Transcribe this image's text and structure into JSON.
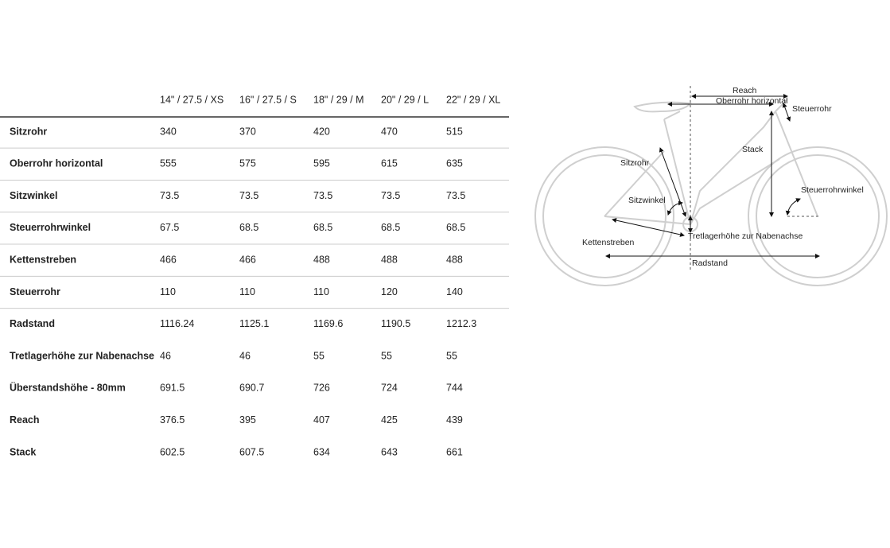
{
  "table": {
    "header": [
      "14\" / 27.5 / XS",
      "16\" / 27.5 / S",
      "18\" / 29 / M",
      "20\" / 29 / L",
      "22\" / 29 / XL"
    ],
    "rows": [
      [
        "Sitzrohr",
        340,
        370,
        420,
        470,
        515
      ],
      [
        "Oberrohr horizontal",
        555,
        575,
        595,
        615,
        635
      ],
      [
        "Sitzwinkel",
        73.5,
        73.5,
        73.5,
        73.5,
        73.5
      ],
      [
        "Steuerrohrwinkel",
        67.5,
        68.5,
        68.5,
        68.5,
        68.5
      ],
      [
        "Kettenstreben",
        466,
        466,
        488,
        488,
        488
      ],
      [
        "Steuerrohr",
        110,
        110,
        110,
        120,
        140
      ],
      [
        "Radstand",
        1116.24,
        1125.1,
        1169.6,
        1190.5,
        1212.3
      ],
      [
        "Tretlagerhöhe zur Nabenachse",
        46,
        46,
        55,
        55,
        55
      ],
      [
        "Überstandshöhe - 80mm",
        691.5,
        690.7,
        726,
        724,
        744
      ],
      [
        "Reach",
        376.5,
        395,
        407,
        425,
        439
      ],
      [
        "Stack",
        602.5,
        607.5,
        634,
        643,
        661
      ]
    ]
  },
  "diagram": {
    "labels": [
      "Reach",
      "Oberrohr horizontal",
      "Steuerrohr",
      "Stack",
      "Sitzrohr",
      "Steuerrohrwinkel",
      "Sitzwinkel",
      "Tretlagerhöhe zur Nabenachse",
      "Kettenstreben",
      "Radstand"
    ]
  }
}
